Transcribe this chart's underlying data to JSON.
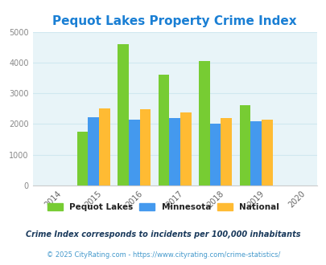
{
  "title": "Pequot Lakes Property Crime Index",
  "title_color": "#1a7fd4",
  "title_fontsize": 11,
  "years": [
    2015,
    2016,
    2017,
    2018,
    2019
  ],
  "pequot_lakes": [
    1750,
    4600,
    3600,
    4050,
    2600
  ],
  "minnesota": [
    2230,
    2130,
    2200,
    2010,
    2100
  ],
  "national": [
    2500,
    2470,
    2370,
    2200,
    2140
  ],
  "bar_colors": {
    "pequot_lakes": "#77cc33",
    "minnesota": "#4499ee",
    "national": "#ffbb33"
  },
  "xlim": [
    2013.5,
    2020.5
  ],
  "ylim": [
    0,
    5000
  ],
  "yticks": [
    0,
    1000,
    2000,
    3000,
    4000,
    5000
  ],
  "xticks": [
    2014,
    2015,
    2016,
    2017,
    2018,
    2019,
    2020
  ],
  "background_color": "#e8f4f8",
  "grid_color": "#d0e8f0",
  "legend_labels": [
    "Pequot Lakes",
    "Minnesota",
    "National"
  ],
  "footnote1": "Crime Index corresponds to incidents per 100,000 inhabitants",
  "footnote2": "© 2025 CityRating.com - https://www.cityrating.com/crime-statistics/",
  "footnote1_color": "#1a3a5c",
  "footnote2_color": "#4499cc",
  "bar_width": 0.27
}
